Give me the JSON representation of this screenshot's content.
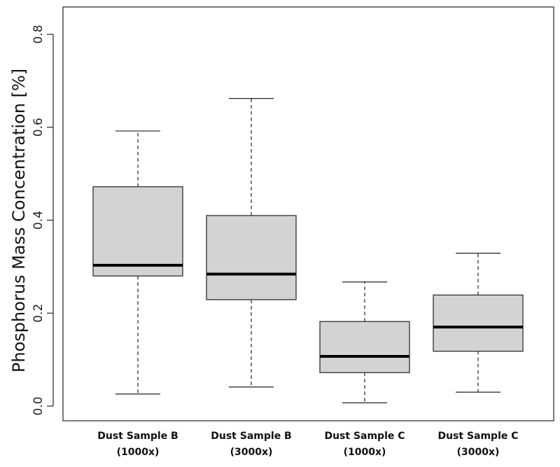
{
  "chart_data": {
    "type": "box",
    "title": "",
    "xlabel": "",
    "ylabel": "Phosphorus Mass Concentration [%]",
    "ylim": [
      0.0,
      0.8
    ],
    "yticks": [
      "0.0",
      "0.2",
      "0.4",
      "0.6",
      "0.8"
    ],
    "grid": false,
    "box_fill": "#d3d3d3",
    "categories": [
      {
        "line1": "Dust Sample B",
        "line2": "(1000x)"
      },
      {
        "line1": "Dust Sample B",
        "line2": "(3000x)"
      },
      {
        "line1": "Dust Sample C",
        "line2": "(1000x)"
      },
      {
        "line1": "Dust Sample C",
        "line2": "(3000x)"
      }
    ],
    "boxes": [
      {
        "min": 0.026,
        "q1": 0.28,
        "median": 0.303,
        "q3": 0.472,
        "max": 0.592
      },
      {
        "min": 0.041,
        "q1": 0.229,
        "median": 0.284,
        "q3": 0.41,
        "max": 0.662
      },
      {
        "min": 0.007,
        "q1": 0.072,
        "median": 0.107,
        "q3": 0.182,
        "max": 0.267
      },
      {
        "min": 0.03,
        "q1": 0.118,
        "median": 0.17,
        "q3": 0.239,
        "max": 0.329
      }
    ]
  }
}
